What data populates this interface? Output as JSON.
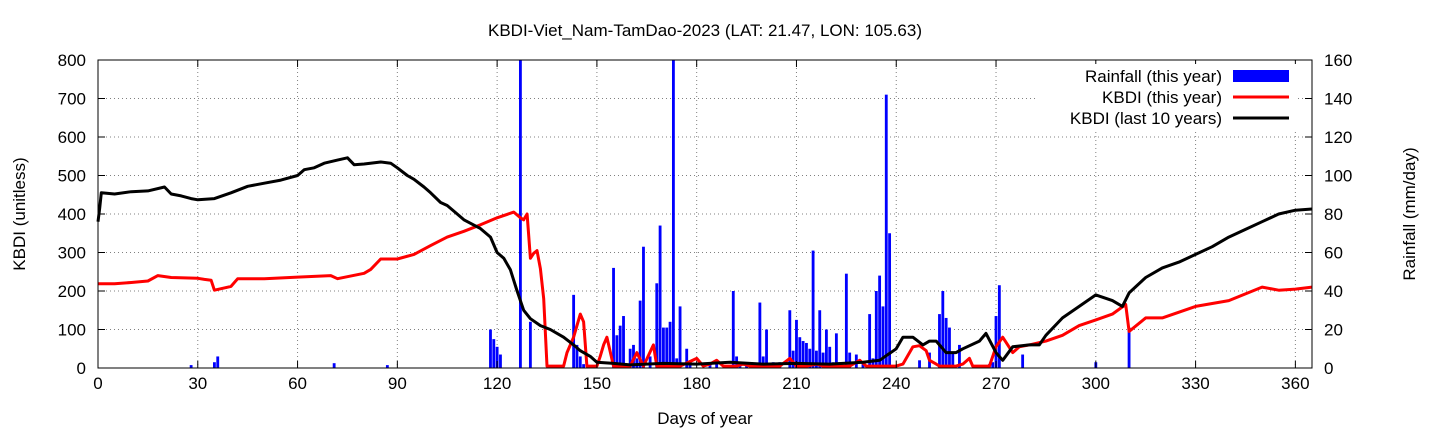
{
  "chart_data": {
    "type": "bar+line",
    "title": "KBDI-Viet_Nam-TamDao-2023 (LAT: 21.47, LON: 105.63)",
    "xlabel": "Days of year",
    "ylabel_left": "KBDI (unitless)",
    "ylabel_right": "Rainfall (mm/day)",
    "xlim": [
      0,
      365
    ],
    "ylim_left": [
      0,
      800
    ],
    "ylim_right": [
      0,
      160
    ],
    "xticks": [
      0,
      30,
      60,
      90,
      120,
      150,
      180,
      210,
      240,
      270,
      300,
      330,
      360
    ],
    "yticks_left": [
      0,
      100,
      200,
      300,
      400,
      500,
      600,
      700,
      800
    ],
    "yticks_right": [
      0,
      20,
      40,
      60,
      80,
      100,
      120,
      140,
      160
    ],
    "grid": true,
    "legend_position": "top-right",
    "colors": {
      "rainfall": "#0000ff",
      "kbdi_this_year": "#ff0000",
      "kbdi_10yr": "#000000"
    },
    "series": [
      {
        "name": "Rainfall (this year)",
        "kind": "bar",
        "axis": "right",
        "points": [
          [
            28,
            1.5
          ],
          [
            35,
            3
          ],
          [
            36,
            6
          ],
          [
            71,
            2.5
          ],
          [
            87,
            1.5
          ],
          [
            118,
            20
          ],
          [
            119,
            15
          ],
          [
            120,
            11
          ],
          [
            121,
            7
          ],
          [
            127,
            160
          ],
          [
            130,
            24
          ],
          [
            143,
            38
          ],
          [
            144,
            12
          ],
          [
            145,
            6
          ],
          [
            146,
            2
          ],
          [
            155,
            52
          ],
          [
            156,
            17
          ],
          [
            157,
            22
          ],
          [
            158,
            27
          ],
          [
            160,
            10
          ],
          [
            161,
            12
          ],
          [
            162,
            5
          ],
          [
            163,
            35
          ],
          [
            164,
            63
          ],
          [
            166,
            6
          ],
          [
            168,
            44
          ],
          [
            169,
            74
          ],
          [
            170,
            21
          ],
          [
            171,
            21
          ],
          [
            172,
            24
          ],
          [
            173,
            160
          ],
          [
            174,
            5
          ],
          [
            175,
            32
          ],
          [
            177,
            10
          ],
          [
            178,
            2
          ],
          [
            184,
            3
          ],
          [
            186,
            2
          ],
          [
            191,
            40
          ],
          [
            192,
            6
          ],
          [
            193,
            3
          ],
          [
            195,
            3
          ],
          [
            197,
            2
          ],
          [
            199,
            34
          ],
          [
            200,
            6
          ],
          [
            201,
            20
          ],
          [
            203,
            3
          ],
          [
            205,
            3
          ],
          [
            208,
            30
          ],
          [
            209,
            9
          ],
          [
            210,
            25
          ],
          [
            211,
            16
          ],
          [
            212,
            14
          ],
          [
            213,
            13
          ],
          [
            214,
            10
          ],
          [
            215,
            61
          ],
          [
            216,
            9
          ],
          [
            217,
            30
          ],
          [
            218,
            8
          ],
          [
            219,
            20
          ],
          [
            220,
            11
          ],
          [
            221,
            3
          ],
          [
            222,
            18
          ],
          [
            223,
            3
          ],
          [
            225,
            49
          ],
          [
            226,
            8
          ],
          [
            228,
            7
          ],
          [
            230,
            3
          ],
          [
            232,
            28
          ],
          [
            233,
            5
          ],
          [
            234,
            40
          ],
          [
            235,
            48
          ],
          [
            236,
            32
          ],
          [
            237,
            142
          ],
          [
            238,
            70
          ],
          [
            247,
            4
          ],
          [
            250,
            8
          ],
          [
            253,
            28
          ],
          [
            254,
            40
          ],
          [
            255,
            26
          ],
          [
            256,
            21
          ],
          [
            257,
            8
          ],
          [
            259,
            12
          ],
          [
            268,
            2
          ],
          [
            269,
            3
          ],
          [
            270,
            27
          ],
          [
            271,
            43
          ],
          [
            278,
            7
          ],
          [
            300,
            3
          ],
          [
            310,
            21
          ]
        ]
      },
      {
        "name": "KBDI (this year)",
        "kind": "line",
        "axis": "left",
        "points": [
          [
            0,
            219
          ],
          [
            5,
            219
          ],
          [
            10,
            222
          ],
          [
            15,
            226
          ],
          [
            18,
            240
          ],
          [
            22,
            235
          ],
          [
            30,
            233
          ],
          [
            32,
            230
          ],
          [
            34,
            228
          ],
          [
            35,
            202
          ],
          [
            40,
            212
          ],
          [
            42,
            232
          ],
          [
            50,
            232
          ],
          [
            60,
            236
          ],
          [
            70,
            240
          ],
          [
            72,
            232
          ],
          [
            80,
            246
          ],
          [
            82,
            256
          ],
          [
            85,
            283
          ],
          [
            90,
            283
          ],
          [
            95,
            295
          ],
          [
            100,
            318
          ],
          [
            105,
            340
          ],
          [
            110,
            355
          ],
          [
            115,
            372
          ],
          [
            120,
            390
          ],
          [
            125,
            405
          ],
          [
            127,
            390
          ],
          [
            128,
            385
          ],
          [
            129,
            400
          ],
          [
            130,
            285
          ],
          [
            131,
            298
          ],
          [
            132,
            305
          ],
          [
            133,
            258
          ],
          [
            134,
            180
          ],
          [
            135,
            5
          ],
          [
            140,
            5
          ],
          [
            141,
            40
          ],
          [
            143,
            80
          ],
          [
            145,
            140
          ],
          [
            146,
            120
          ],
          [
            147,
            5
          ],
          [
            150,
            5
          ],
          [
            151,
            30
          ],
          [
            152,
            60
          ],
          [
            153,
            80
          ],
          [
            155,
            5
          ],
          [
            160,
            5
          ],
          [
            162,
            40
          ],
          [
            164,
            5
          ],
          [
            167,
            60
          ],
          [
            168,
            5
          ],
          [
            170,
            5
          ],
          [
            172,
            5
          ],
          [
            175,
            5
          ],
          [
            180,
            25
          ],
          [
            182,
            5
          ],
          [
            184,
            10
          ],
          [
            186,
            20
          ],
          [
            188,
            5
          ],
          [
            192,
            5
          ],
          [
            194,
            10
          ],
          [
            196,
            5
          ],
          [
            200,
            5
          ],
          [
            205,
            5
          ],
          [
            208,
            25
          ],
          [
            210,
            5
          ],
          [
            213,
            5
          ],
          [
            216,
            10
          ],
          [
            218,
            5
          ],
          [
            223,
            5
          ],
          [
            226,
            5
          ],
          [
            229,
            20
          ],
          [
            231,
            5
          ],
          [
            235,
            5
          ],
          [
            237,
            5
          ],
          [
            240,
            5
          ],
          [
            242,
            10
          ],
          [
            245,
            55
          ],
          [
            247,
            58
          ],
          [
            249,
            45
          ],
          [
            250,
            20
          ],
          [
            252,
            10
          ],
          [
            253,
            5
          ],
          [
            258,
            5
          ],
          [
            260,
            10
          ],
          [
            262,
            25
          ],
          [
            263,
            5
          ],
          [
            268,
            5
          ],
          [
            270,
            55
          ],
          [
            272,
            80
          ],
          [
            275,
            40
          ],
          [
            277,
            55
          ],
          [
            280,
            60
          ],
          [
            285,
            70
          ],
          [
            290,
            85
          ],
          [
            295,
            110
          ],
          [
            300,
            125
          ],
          [
            305,
            140
          ],
          [
            309,
            165
          ],
          [
            310,
            95
          ],
          [
            315,
            130
          ],
          [
            320,
            130
          ],
          [
            330,
            160
          ],
          [
            340,
            175
          ],
          [
            350,
            210
          ],
          [
            355,
            202
          ],
          [
            360,
            205
          ],
          [
            365,
            210
          ]
        ]
      },
      {
        "name": "KBDI (last 10 years)",
        "kind": "line",
        "axis": "left",
        "points": [
          [
            0,
            380
          ],
          [
            0.5,
            415
          ],
          [
            1,
            455
          ],
          [
            5,
            452
          ],
          [
            10,
            458
          ],
          [
            15,
            460
          ],
          [
            20,
            470
          ],
          [
            22,
            452
          ],
          [
            25,
            447
          ],
          [
            28,
            440
          ],
          [
            30,
            437
          ],
          [
            35,
            440
          ],
          [
            40,
            455
          ],
          [
            45,
            472
          ],
          [
            50,
            480
          ],
          [
            55,
            488
          ],
          [
            60,
            500
          ],
          [
            62,
            515
          ],
          [
            65,
            520
          ],
          [
            68,
            532
          ],
          [
            72,
            540
          ],
          [
            75,
            546
          ],
          [
            77,
            528
          ],
          [
            80,
            530
          ],
          [
            85,
            535
          ],
          [
            88,
            532
          ],
          [
            90,
            520
          ],
          [
            93,
            500
          ],
          [
            95,
            490
          ],
          [
            98,
            470
          ],
          [
            100,
            455
          ],
          [
            103,
            430
          ],
          [
            105,
            422
          ],
          [
            108,
            400
          ],
          [
            110,
            385
          ],
          [
            115,
            362
          ],
          [
            118,
            340
          ],
          [
            120,
            300
          ],
          [
            122,
            285
          ],
          [
            124,
            255
          ],
          [
            126,
            200
          ],
          [
            128,
            150
          ],
          [
            130,
            128
          ],
          [
            133,
            110
          ],
          [
            136,
            100
          ],
          [
            140,
            80
          ],
          [
            143,
            60
          ],
          [
            145,
            45
          ],
          [
            148,
            30
          ],
          [
            150,
            15
          ],
          [
            155,
            12
          ],
          [
            160,
            8
          ],
          [
            170,
            12
          ],
          [
            180,
            10
          ],
          [
            190,
            15
          ],
          [
            200,
            10
          ],
          [
            210,
            12
          ],
          [
            220,
            10
          ],
          [
            230,
            15
          ],
          [
            235,
            20
          ],
          [
            240,
            50
          ],
          [
            242,
            80
          ],
          [
            245,
            80
          ],
          [
            248,
            60
          ],
          [
            250,
            70
          ],
          [
            252,
            70
          ],
          [
            255,
            40
          ],
          [
            258,
            40
          ],
          [
            260,
            50
          ],
          [
            265,
            70
          ],
          [
            267,
            90
          ],
          [
            270,
            40
          ],
          [
            272,
            20
          ],
          [
            275,
            55
          ],
          [
            280,
            60
          ],
          [
            283,
            60
          ],
          [
            285,
            85
          ],
          [
            290,
            130
          ],
          [
            295,
            160
          ],
          [
            300,
            190
          ],
          [
            305,
            175
          ],
          [
            308,
            160
          ],
          [
            310,
            195
          ],
          [
            315,
            235
          ],
          [
            320,
            260
          ],
          [
            325,
            275
          ],
          [
            330,
            295
          ],
          [
            335,
            315
          ],
          [
            340,
            340
          ],
          [
            345,
            360
          ],
          [
            350,
            380
          ],
          [
            355,
            400
          ],
          [
            360,
            410
          ],
          [
            365,
            413
          ]
        ]
      }
    ]
  }
}
